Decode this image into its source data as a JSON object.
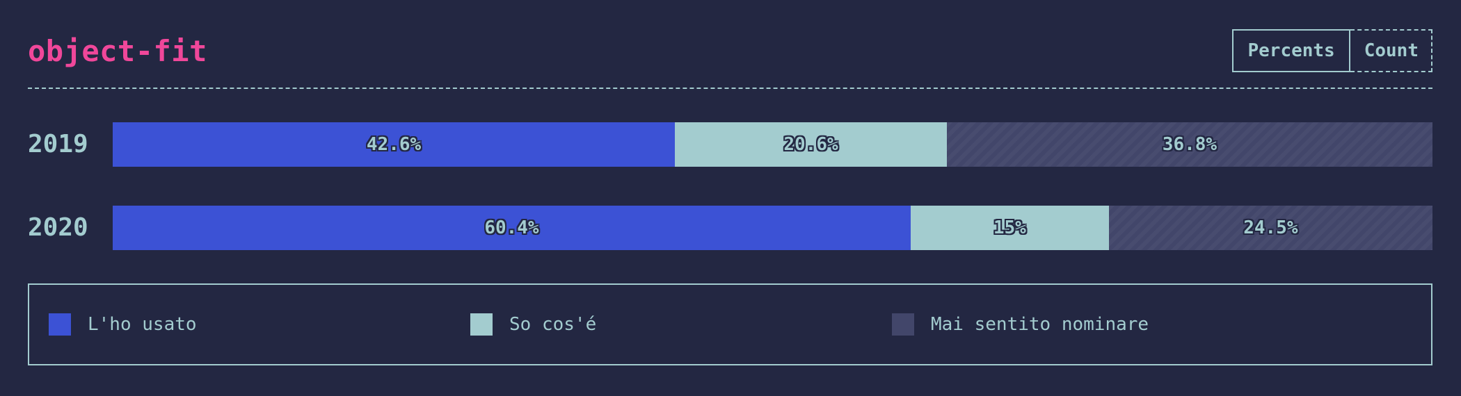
{
  "title": "object-fit",
  "toggle": {
    "percents_label": "Percents",
    "count_label": "Count",
    "active": "Percents"
  },
  "colors": {
    "title": "#f0479a",
    "text": "#a3cccf",
    "background": "#232742",
    "used": "#3c52d5",
    "know": "#a3cccf",
    "never_heard": "#42466a"
  },
  "chart_data": {
    "type": "bar",
    "orientation": "horizontal",
    "stacked": true,
    "normalized": true,
    "categories": [
      "2019",
      "2020"
    ],
    "series": [
      {
        "name": "L'ho usato",
        "values": [
          42.6,
          60.4
        ],
        "labels": [
          "42.6%",
          "60.4%"
        ]
      },
      {
        "name": "So cos'é",
        "values": [
          20.6,
          15
        ],
        "labels": [
          "20.6%",
          "15%"
        ]
      },
      {
        "name": "Mai sentito nominare",
        "values": [
          36.8,
          24.5
        ],
        "labels": [
          "36.8%",
          "24.5%"
        ]
      }
    ],
    "xlim": [
      0,
      100
    ],
    "legend_position": "bottom",
    "grid": false
  }
}
